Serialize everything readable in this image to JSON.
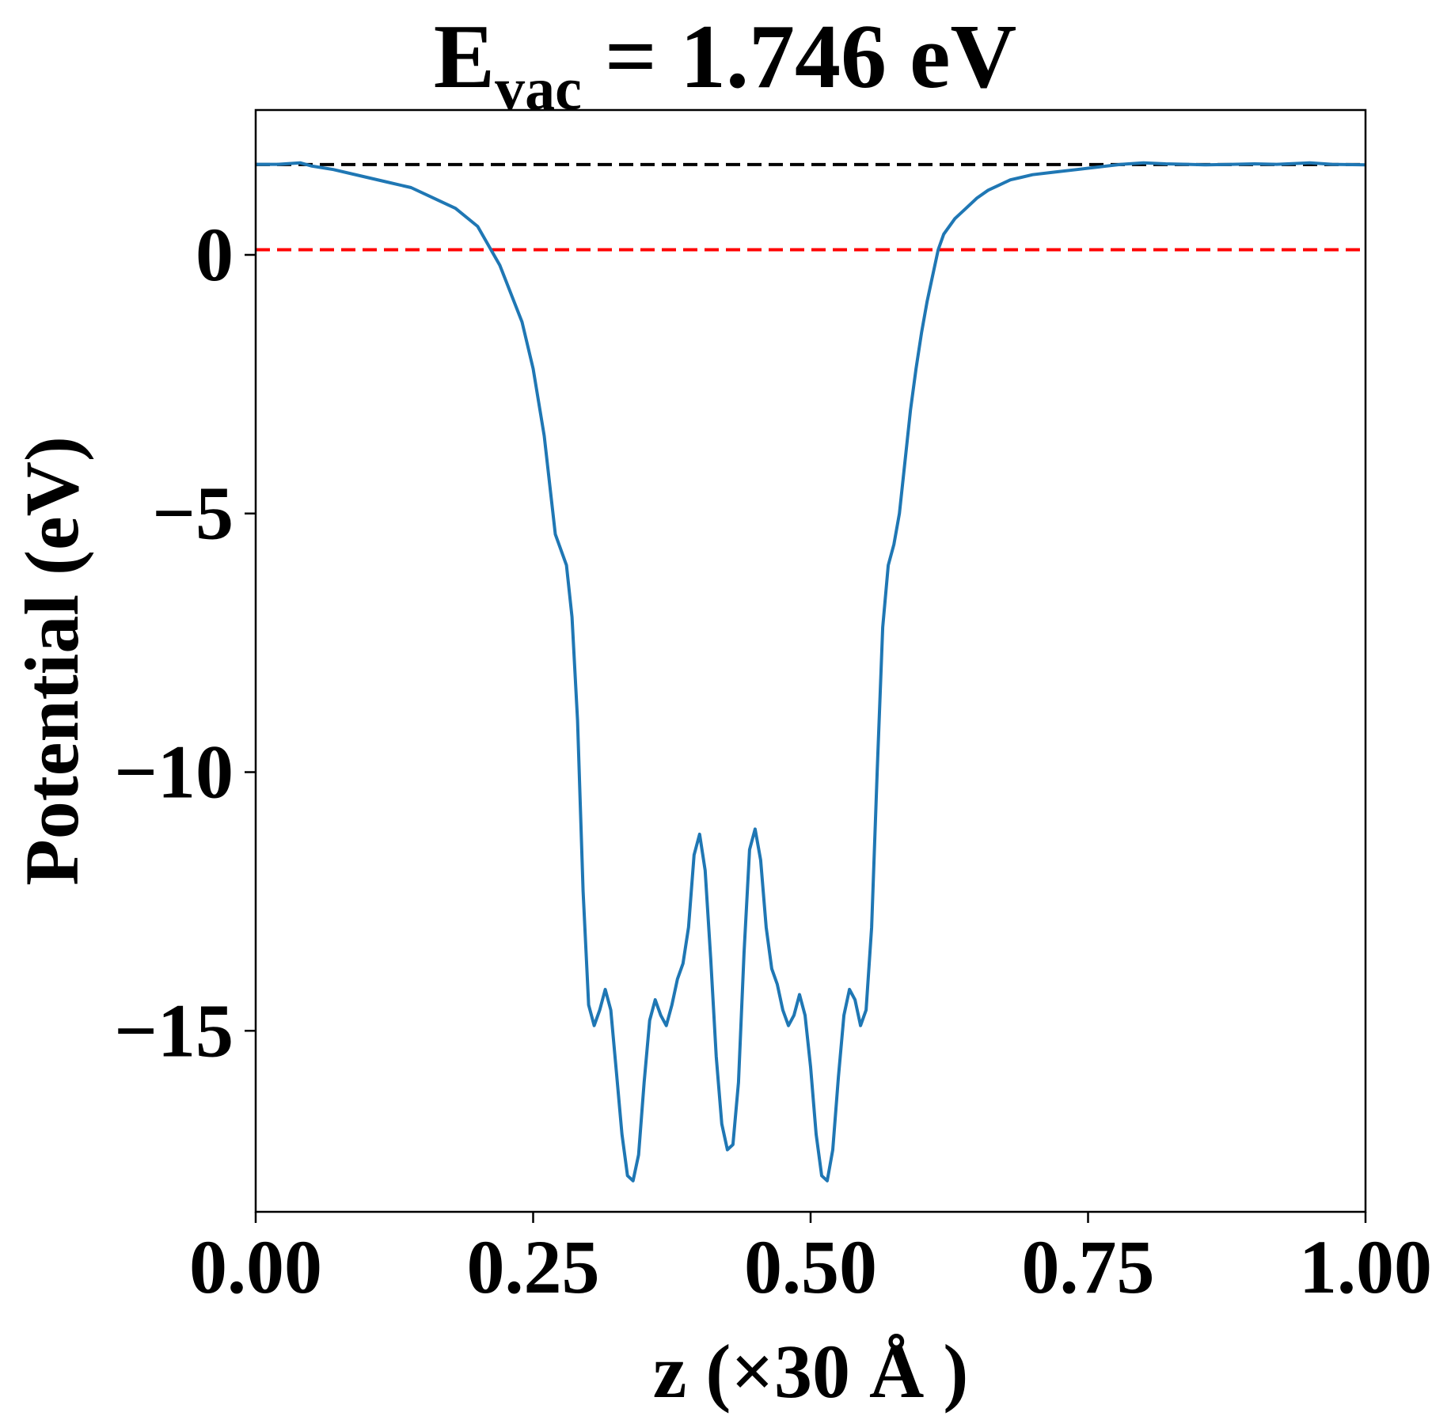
{
  "chart_data": {
    "type": "line",
    "title": {
      "main": "E",
      "subscript": "vac",
      "rest": " = 1.746 eV"
    },
    "xlabel": "z (×30 Å )",
    "ylabel": "Potential (eV)",
    "xlim": [
      0.0,
      1.0
    ],
    "ylim": [
      -18.5,
      2.8
    ],
    "xticks": [
      0.0,
      0.25,
      0.5,
      0.75,
      1.0
    ],
    "xtick_labels": [
      "0.00",
      "0.25",
      "0.50",
      "0.75",
      "1.00"
    ],
    "yticks": [
      0,
      -5,
      -10,
      -15
    ],
    "ytick_labels": [
      "0",
      "−5",
      "−10",
      "−15"
    ],
    "grid": false,
    "reference_lines": [
      {
        "y": 1.746,
        "style": "dashed",
        "color": "#000000"
      },
      {
        "y": 0.1,
        "style": "dashed",
        "color": "#ff0000"
      }
    ],
    "series": [
      {
        "color": "#1f77b4",
        "x": [
          0.0,
          0.02,
          0.04,
          0.05,
          0.07,
          0.1,
          0.12,
          0.14,
          0.16,
          0.18,
          0.2,
          0.22,
          0.24,
          0.25,
          0.26,
          0.27,
          0.28,
          0.285,
          0.29,
          0.295,
          0.3,
          0.305,
          0.31,
          0.315,
          0.32,
          0.325,
          0.33,
          0.335,
          0.34,
          0.345,
          0.35,
          0.355,
          0.36,
          0.365,
          0.37,
          0.375,
          0.38,
          0.385,
          0.39,
          0.395,
          0.4,
          0.405,
          0.41,
          0.415,
          0.42,
          0.425,
          0.43,
          0.435,
          0.44,
          0.445,
          0.45,
          0.455,
          0.46,
          0.465,
          0.47,
          0.475,
          0.48,
          0.485,
          0.49,
          0.495,
          0.5,
          0.505,
          0.51,
          0.515,
          0.52,
          0.525,
          0.53,
          0.535,
          0.54,
          0.545,
          0.55,
          0.555,
          0.56,
          0.565,
          0.57,
          0.575,
          0.58,
          0.585,
          0.59,
          0.595,
          0.6,
          0.605,
          0.61,
          0.615,
          0.62,
          0.63,
          0.64,
          0.65,
          0.66,
          0.67,
          0.68,
          0.69,
          0.7,
          0.72,
          0.74,
          0.76,
          0.78,
          0.8,
          0.82,
          0.84,
          0.855,
          0.88,
          0.9,
          0.92,
          0.95,
          0.97,
          1.0
        ],
        "y": [
          1.75,
          1.75,
          1.78,
          1.72,
          1.65,
          1.5,
          1.4,
          1.3,
          1.1,
          0.9,
          0.55,
          -0.2,
          -1.3,
          -2.2,
          -3.5,
          -5.4,
          -6.0,
          -7.0,
          -9.0,
          -12.3,
          -14.5,
          -14.9,
          -14.6,
          -14.2,
          -14.6,
          -15.8,
          -17.0,
          -17.8,
          -17.9,
          -17.4,
          -16.0,
          -14.8,
          -14.4,
          -14.7,
          -14.9,
          -14.5,
          -14.0,
          -13.7,
          -13.0,
          -11.6,
          -11.2,
          -11.9,
          -13.6,
          -15.5,
          -16.8,
          -17.3,
          -17.2,
          -16.0,
          -13.5,
          -11.5,
          -11.1,
          -11.7,
          -13.0,
          -13.8,
          -14.1,
          -14.6,
          -14.9,
          -14.7,
          -14.3,
          -14.7,
          -15.7,
          -17.0,
          -17.8,
          -17.9,
          -17.3,
          -15.9,
          -14.7,
          -14.2,
          -14.4,
          -14.9,
          -14.6,
          -13.0,
          -10.0,
          -7.2,
          -6.0,
          -5.6,
          -5.0,
          -4.0,
          -3.0,
          -2.2,
          -1.5,
          -0.9,
          -0.4,
          0.1,
          0.4,
          0.7,
          0.9,
          1.1,
          1.25,
          1.35,
          1.45,
          1.5,
          1.55,
          1.6,
          1.65,
          1.7,
          1.75,
          1.78,
          1.76,
          1.75,
          1.74,
          1.75,
          1.76,
          1.75,
          1.78,
          1.75,
          1.74
        ]
      }
    ]
  }
}
